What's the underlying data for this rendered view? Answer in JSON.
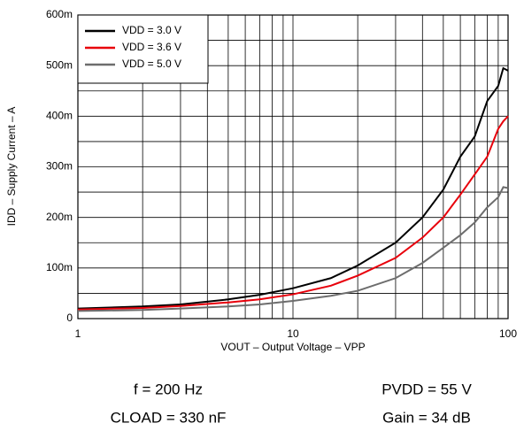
{
  "chart_data": {
    "type": "line",
    "xlabel": "VOUT – Output Voltage – VPP",
    "ylabel": "IDD – Supply Current – A",
    "x": [
      1,
      2,
      3,
      5,
      7,
      10,
      15,
      20,
      30,
      40,
      50,
      60,
      70,
      80,
      90,
      95,
      100
    ],
    "series": [
      {
        "name": "VDD = 3.0 V",
        "color": "#000000",
        "values": [
          0.02,
          0.024,
          0.028,
          0.038,
          0.047,
          0.06,
          0.08,
          0.105,
          0.15,
          0.2,
          0.255,
          0.32,
          0.36,
          0.43,
          0.46,
          0.495,
          0.49
        ]
      },
      {
        "name": "VDD = 3.6 V",
        "color": "#e8000b",
        "values": [
          0.018,
          0.021,
          0.025,
          0.032,
          0.038,
          0.048,
          0.065,
          0.085,
          0.12,
          0.16,
          0.2,
          0.245,
          0.285,
          0.32,
          0.375,
          0.39,
          0.4
        ]
      },
      {
        "name": "VDD = 5.0 V",
        "color": "#6d6d6d",
        "values": [
          0.015,
          0.017,
          0.02,
          0.024,
          0.028,
          0.035,
          0.045,
          0.055,
          0.08,
          0.11,
          0.14,
          0.165,
          0.19,
          0.22,
          0.24,
          0.26,
          0.258
        ]
      }
    ],
    "xlog": true,
    "xlim": [
      1,
      100
    ],
    "xticks": [
      1,
      10,
      100
    ],
    "xminorticks": [
      2,
      3,
      4,
      5,
      6,
      7,
      8,
      9,
      20,
      30,
      40,
      50,
      60,
      70,
      80,
      90
    ],
    "ylim": [
      0,
      0.6
    ],
    "yticks": [
      0,
      {
        "value": 0.1,
        "label": "100m"
      },
      {
        "value": 0.2,
        "label": "200m"
      },
      {
        "value": 0.3,
        "label": "300m"
      },
      {
        "value": 0.4,
        "label": "400m"
      },
      {
        "value": 0.5,
        "label": "500m"
      },
      {
        "value": 0.6,
        "label": "600m"
      }
    ],
    "yminorticks": [
      0.05,
      0.15,
      0.25,
      0.35,
      0.45,
      0.55
    ],
    "grid": true,
    "legend": "upper left",
    "annotations": [
      "f = 200 Hz",
      "PVDD = 55 V",
      "CLOAD = 330 nF",
      "Gain = 34 dB"
    ]
  }
}
